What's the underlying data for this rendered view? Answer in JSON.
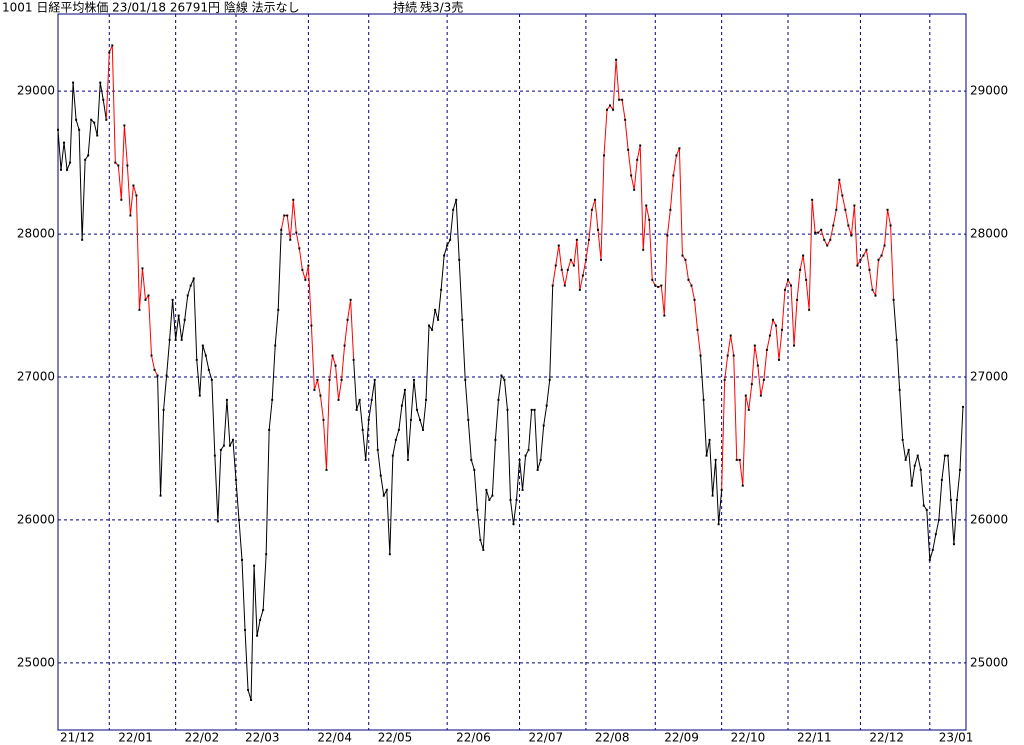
{
  "chart_data": {
    "type": "line",
    "title": "1001 日経平均株価 23/01/18 26791円 陰線 法示なし",
    "annotations": [
      "持続",
      "残3/3売"
    ],
    "x": [
      0,
      1,
      2,
      3,
      4,
      5,
      6,
      7,
      8,
      9,
      10,
      11,
      12,
      13,
      14,
      15,
      16,
      17,
      18,
      19,
      20,
      21,
      22,
      23,
      24,
      25,
      26,
      27,
      28,
      29,
      30,
      31,
      32,
      33,
      34,
      35,
      36,
      37,
      38,
      39,
      40,
      41,
      42,
      43,
      44,
      45,
      46,
      47,
      48,
      49,
      50,
      51,
      52,
      53,
      54,
      55,
      56,
      57,
      58,
      59,
      60,
      61,
      62,
      63,
      64,
      65,
      66,
      67,
      68,
      69,
      70,
      71,
      72,
      73,
      74,
      75,
      76,
      77,
      78,
      79,
      80,
      81,
      82,
      83,
      84,
      85,
      86,
      87,
      88,
      89,
      90,
      91,
      92,
      93,
      94,
      95,
      96,
      97,
      98,
      99,
      100,
      101,
      102,
      103,
      104,
      105,
      106,
      107,
      108,
      109,
      110,
      111,
      112,
      113,
      114,
      115,
      116,
      117,
      118,
      119,
      120,
      121,
      122,
      123,
      124,
      125,
      126,
      127,
      128,
      129,
      130,
      131,
      132,
      133,
      134,
      135,
      136,
      137,
      138,
      139,
      140,
      141,
      142,
      143,
      144,
      145,
      146,
      147,
      148,
      149,
      150,
      151,
      152,
      153,
      154,
      155,
      156,
      157,
      158,
      159,
      160,
      161,
      162,
      163,
      164,
      165,
      166,
      167,
      168,
      169,
      170,
      171,
      172,
      173,
      174,
      175,
      176,
      177,
      178,
      179,
      180,
      181,
      182,
      183,
      184,
      185,
      186,
      187,
      188,
      189,
      190,
      191,
      192,
      193,
      194,
      195,
      196,
      197,
      198,
      199,
      200,
      201,
      202,
      203,
      204,
      205,
      206,
      207,
      208,
      209,
      210,
      211,
      212,
      213,
      214,
      215,
      216,
      217,
      218,
      219,
      220,
      221,
      222,
      223,
      224,
      225,
      226,
      227,
      228,
      229,
      230,
      231,
      232,
      233,
      234,
      235,
      236,
      237,
      238,
      239,
      240,
      241,
      242,
      243,
      244,
      245,
      246,
      247,
      248,
      249,
      250,
      251,
      252,
      253,
      254,
      255,
      256,
      257,
      258,
      259,
      260,
      261,
      262,
      263,
      264,
      265,
      266,
      267,
      268,
      269,
      270,
      271,
      272,
      273,
      274,
      275,
      276,
      277,
      278,
      279,
      280,
      281,
      282,
      283,
      284,
      285,
      286,
      287,
      288,
      289,
      290,
      291,
      292,
      293,
      294,
      295,
      296,
      297,
      298,
      299,
      300
    ],
    "series": [
      {
        "color": "#000000",
        "values": [
          28730,
          28450,
          28640,
          28450,
          28500,
          29060,
          28800,
          28730,
          27960,
          28520,
          28550,
          28800,
          28780,
          28690,
          29060,
          28940,
          28800,
          29270,
          29320,
          28500,
          28480,
          28240,
          28760,
          28480,
          28130,
          28340,
          28270,
          27470,
          27760,
          27540,
          27570,
          27150,
          27050,
          27010,
          26170,
          26770,
          27010,
          27260,
          27540,
          27260,
          27430,
          27260,
          27400,
          27570,
          27640,
          27690,
          27120,
          26870,
          27220,
          27150,
          27050,
          26980,
          26450,
          25990,
          26490,
          26520,
          26840,
          26520,
          26560,
          26280,
          26000,
          25720,
          25230,
          24810,
          24740,
          25680,
          25190,
          25300,
          25370,
          25760,
          26630,
          26840,
          27220,
          27470,
          28030,
          28130,
          28130,
          27960,
          28240,
          28010,
          27900,
          27750,
          27680,
          27780,
          27360,
          26910,
          26980,
          26870,
          26700,
          26350,
          26980,
          27150,
          27080,
          26840,
          26980,
          27220,
          27400,
          27540,
          27120,
          26770,
          26840,
          26630,
          26420,
          26700,
          26840,
          26980,
          26490,
          26310,
          26170,
          26210,
          25760,
          26450,
          26560,
          26630,
          26800,
          26910,
          26420,
          26700,
          26980,
          26770,
          26700,
          26630,
          26840,
          27360,
          27330,
          27470,
          27400,
          27610,
          27850,
          27920,
          27960,
          28170,
          28240,
          27820,
          27400,
          26980,
          26700,
          26420,
          26350,
          26070,
          25860,
          25790,
          26210,
          26140,
          26170,
          26560,
          26840,
          27010,
          26980,
          26770,
          26140,
          25970,
          26140,
          26420,
          26210,
          26450,
          26490,
          26770,
          26770,
          26350,
          26420,
          26660,
          26800,
          26980,
          27640,
          27780,
          27920,
          27750,
          27640,
          27750,
          27820,
          27780,
          27960,
          27610,
          27710,
          27820,
          27960,
          28170,
          28240,
          28030,
          27820,
          28550,
          28870,
          28900,
          28870,
          29220,
          28940,
          28940,
          28800,
          28590,
          28410,
          28310,
          28520,
          28620,
          27890,
          28200,
          28100,
          27680,
          27640,
          27630,
          27640,
          27430,
          27990,
          28170,
          28410,
          28550,
          28600,
          27850,
          27820,
          27680,
          27640,
          27540,
          27330,
          27150,
          26840,
          26450,
          26560,
          26170,
          26420,
          25970,
          26210,
          26980,
          27150,
          27290,
          27150,
          26420,
          26420,
          26240,
          26870,
          26770,
          26950,
          27220,
          27080,
          26870,
          26980,
          27190,
          27290,
          27400,
          27360,
          27120,
          27330,
          27610,
          27680,
          27640,
          27220,
          27540,
          27750,
          27850,
          27680,
          27470,
          28240,
          28010,
          28010,
          28030,
          27960,
          27920,
          27960,
          28060,
          28170,
          28380,
          28270,
          28170,
          28060,
          27990,
          28200,
          27780,
          27820,
          27850,
          27890,
          27750,
          27610,
          27570,
          27820,
          27850,
          27920,
          28170,
          28060,
          27540,
          27260,
          26910,
          26560,
          26420,
          26490,
          26240,
          26380,
          26450,
          26350,
          26100,
          26070,
          25720,
          25790,
          25900,
          26000,
          26280,
          26450,
          26450,
          26140,
          25830,
          26140,
          26350,
          26791
        ],
        "highlight": {
          "color": "#ff0000",
          "ranges": [
            [
              16,
              33
            ],
            [
              74,
              98
            ],
            [
              164,
              213
            ],
            [
              220,
              277
            ]
          ]
        }
      }
    ],
    "xlim": [
      0,
      301
    ],
    "xticks": [
      {
        "value": 0,
        "label": "21/12"
      },
      {
        "value": 17,
        "label": "22/01"
      },
      {
        "value": 39,
        "label": "22/02"
      },
      {
        "value": 59,
        "label": "22/03"
      },
      {
        "value": 83,
        "label": "22/04"
      },
      {
        "value": 103,
        "label": "22/05"
      },
      {
        "value": 129,
        "label": "22/06"
      },
      {
        "value": 153,
        "label": "22/07"
      },
      {
        "value": 175,
        "label": "22/08"
      },
      {
        "value": 198,
        "label": "22/09"
      },
      {
        "value": 220,
        "label": "22/10"
      },
      {
        "value": 242,
        "label": "22/11"
      },
      {
        "value": 266,
        "label": "22/12"
      },
      {
        "value": 289,
        "label": "23/01"
      }
    ],
    "ylim": [
      24530,
      29540
    ],
    "yticks": [
      25000,
      26000,
      27000,
      28000,
      29000
    ],
    "grid": true,
    "grid_color": "#00007f",
    "frame_color": "#00007f"
  }
}
